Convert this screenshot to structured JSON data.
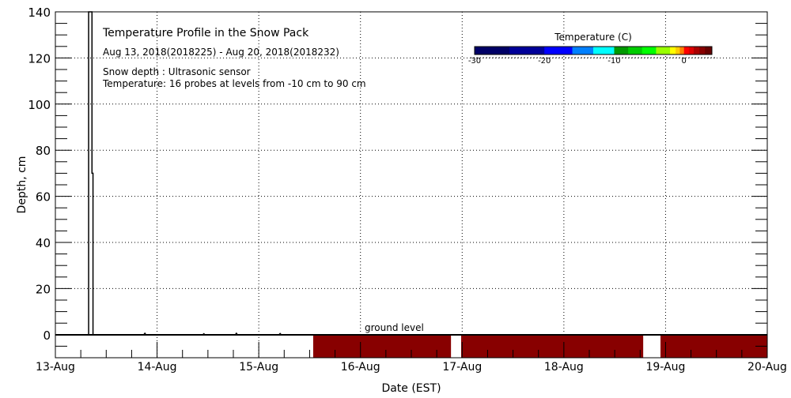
{
  "chart_data": {
    "type": "line",
    "title": "Temperature Profile in the Snow Pack",
    "subtitle": "Aug 13, 2018(2018225) - Aug 20, 2018(2018232)",
    "notes": [
      "Snow depth : Ultrasonic sensor",
      "Temperature: 16 probes at levels from -10 cm to 90 cm"
    ],
    "xlabel": "Date (EST)",
    "ylabel": "Depth, cm",
    "x_tick_labels": [
      "13-Aug",
      "14-Aug",
      "15-Aug",
      "16-Aug",
      "17-Aug",
      "18-Aug",
      "19-Aug",
      "20-Aug"
    ],
    "xlim_days": [
      0,
      7
    ],
    "ylim": [
      -10,
      140
    ],
    "y_ticks": [
      0,
      20,
      40,
      60,
      80,
      100,
      120,
      140
    ],
    "grid": true,
    "annotation": "ground level",
    "series": [
      {
        "name": "Snow depth",
        "x_days": [
          0,
          0.327,
          0.327,
          0.36,
          0.36,
          0.37,
          0.37,
          0.87,
          0.88,
          0.89,
          1.45,
          1.46,
          1.47,
          1.77,
          1.78,
          1.79,
          2.2,
          2.21,
          2.22,
          2.535
        ],
        "values": [
          0,
          0,
          140,
          140,
          70,
          70,
          0,
          0,
          0.6,
          0,
          0,
          0.4,
          0,
          0,
          0.6,
          0,
          0,
          0.5,
          0,
          0
        ],
        "color": "#000000"
      }
    ],
    "temperature_segments": [
      {
        "start_day": 2.535,
        "end_day": 3.89,
        "top_cm": 0,
        "bottom_cm": -10,
        "temp_c": 3
      },
      {
        "start_day": 3.99,
        "end_day": 5.78,
        "top_cm": 0,
        "bottom_cm": -10,
        "temp_c": 3
      },
      {
        "start_day": 5.95,
        "end_day": 7.0,
        "top_cm": 0,
        "bottom_cm": -10,
        "temp_c": 3
      }
    ],
    "colorbar": {
      "title": "Temperature (C)",
      "range": [
        -30,
        4
      ],
      "tick_values": [
        -30,
        -20,
        -10,
        0
      ],
      "tick_labels": [
        "-30",
        "-20",
        "-10",
        "0"
      ],
      "stops": [
        {
          "from": -30,
          "to": -25,
          "color": "#000066"
        },
        {
          "from": -25,
          "to": -20,
          "color": "#000099"
        },
        {
          "from": -20,
          "to": -16,
          "color": "#0000ff"
        },
        {
          "from": -16,
          "to": -13,
          "color": "#0080ff"
        },
        {
          "from": -13,
          "to": -10,
          "color": "#00ffff"
        },
        {
          "from": -10,
          "to": -8,
          "color": "#009900"
        },
        {
          "from": -8,
          "to": -6,
          "color": "#00cc00"
        },
        {
          "from": -6,
          "to": -4,
          "color": "#00ff00"
        },
        {
          "from": -4,
          "to": -2,
          "color": "#99ff00"
        },
        {
          "from": -2,
          "to": -1.2,
          "color": "#ffff00"
        },
        {
          "from": -1.2,
          "to": -0.6,
          "color": "#ffcc00"
        },
        {
          "from": -0.6,
          "to": 0,
          "color": "#ff8000"
        },
        {
          "from": 0,
          "to": 0.7,
          "color": "#ff0000"
        },
        {
          "from": 0.7,
          "to": 1.4,
          "color": "#dd0000"
        },
        {
          "from": 1.4,
          "to": 2.2,
          "color": "#aa0000"
        },
        {
          "from": 2.2,
          "to": 3,
          "color": "#880000"
        },
        {
          "from": 3,
          "to": 4,
          "color": "#660000"
        }
      ]
    }
  }
}
